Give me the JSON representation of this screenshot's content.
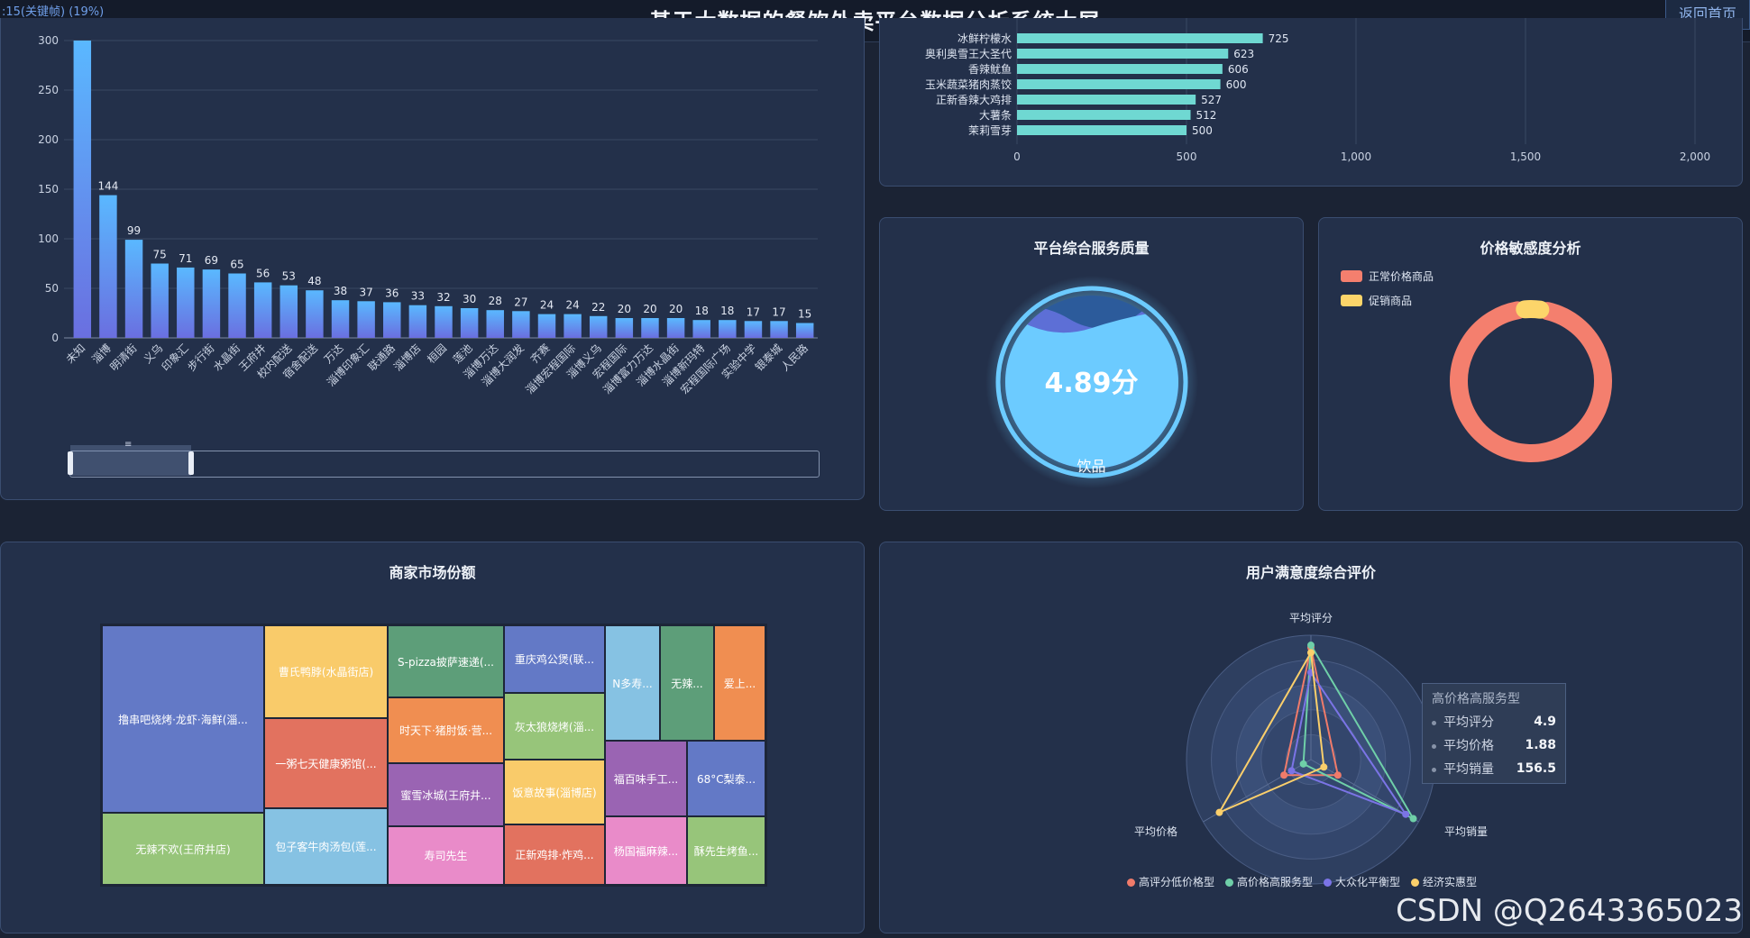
{
  "header": {
    "fps_text": ":15(关键帧) (19%)",
    "title": "基于大数据的餐饮外卖平台数据分析系统大屏",
    "home_button": "返回首页"
  },
  "colors": {
    "bar_top": "#5ab8ff",
    "bar_bottom": "#6a6fe0",
    "hbar": "#6fd8d2",
    "gauge": "#6ccbff",
    "normal_price": "#f47f6e",
    "promo_price": "#fcd56a"
  },
  "area_bar": {
    "chart_data": {
      "type": "bar",
      "categories": [
        "未知",
        "淄博",
        "明清街",
        "义乌",
        "印象汇",
        "步行街",
        "水晶街",
        "王府井",
        "校内配送",
        "宿舍配送",
        "万达",
        "淄博印象汇",
        "联通路",
        "淄博店",
        "桓园",
        "莲池",
        "淄博万达",
        "淄博大润发",
        "齐赛",
        "淄博宏程国际",
        "淄博义乌",
        "宏程国际",
        "淄博富力万达",
        "淄博水晶街",
        "淄博新玛特",
        "宏程国际广场",
        "实验中学",
        "银泰城",
        "人民路"
      ],
      "values": [
        300,
        144,
        99,
        75,
        71,
        69,
        65,
        56,
        53,
        48,
        38,
        37,
        36,
        33,
        32,
        30,
        28,
        27,
        24,
        24,
        22,
        20,
        20,
        20,
        18,
        18,
        17,
        17,
        15
      ],
      "value_labels": [
        "",
        "144",
        "99",
        "75",
        "71",
        "69",
        "65",
        "56",
        "53",
        "48",
        "38",
        "37",
        "36",
        "33",
        "32",
        "30",
        "28",
        "27",
        "24",
        "24",
        "22",
        "20",
        "20",
        "20",
        "18",
        "18",
        "17",
        "17",
        "15"
      ],
      "yticks": [
        "0",
        "50",
        "100",
        "150",
        "200",
        "250",
        "300"
      ],
      "ylim": [
        0,
        300
      ],
      "datazoom_handle": "≡"
    }
  },
  "top_dishes": {
    "chart_data": {
      "type": "bar",
      "orientation": "horizontal",
      "categories": [
        "冰鲜柠檬水",
        "奥利奥雪王大圣代",
        "香辣鱿鱼",
        "玉米蔬菜猪肉蒸饺",
        "正新香辣大鸡排",
        "大薯条",
        "茉莉雪芽"
      ],
      "values": [
        725,
        623,
        606,
        600,
        527,
        512,
        500
      ],
      "xticks": [
        "0",
        "500",
        "1,000",
        "1,500",
        "2,000"
      ],
      "xlim": [
        0,
        2000
      ]
    }
  },
  "service_quality": {
    "title": "平台综合服务质量",
    "value": "4.89分",
    "label": "饮品"
  },
  "price_sensitivity": {
    "title": "价格敏感度分析",
    "legend": [
      "正常价格商品",
      "促销商品"
    ],
    "chart_data": {
      "type": "pie",
      "labels": [
        "正常价格商品",
        "促销商品"
      ],
      "values": [
        95,
        5
      ]
    }
  },
  "market_share": {
    "title": "商家市场份额",
    "cells": [
      {
        "label": "撸串吧烧烤·龙虾·海鲜(淄...",
        "color": "#6379c6"
      },
      {
        "label": "无辣不欢(王府井店)",
        "color": "#97c57a"
      },
      {
        "label": "曹氏鸭脖(水晶街店)",
        "color": "#f9cb6a"
      },
      {
        "label": "一粥七天健康粥馆(...",
        "color": "#e2725f"
      },
      {
        "label": "包子客牛肉汤包(莲...",
        "color": "#86c2e3"
      },
      {
        "label": "S-pizza披萨速递(...",
        "color": "#5d9e79"
      },
      {
        "label": "时天下·猪肘饭·营...",
        "color": "#f08e51"
      },
      {
        "label": "蜜雪冰城(王府井...",
        "color": "#9a64b3"
      },
      {
        "label": "寿司先生",
        "color": "#e98bc9"
      },
      {
        "label": "重庆鸡公煲(联...",
        "color": "#6379c6"
      },
      {
        "label": "灰太狼烧烤(淄...",
        "color": "#97c57a"
      },
      {
        "label": "饭意故事(淄博店)",
        "color": "#f9cb6a"
      },
      {
        "label": "正新鸡排·炸鸡...",
        "color": "#e2725f"
      },
      {
        "label": "N多寿...",
        "color": "#86c2e3"
      },
      {
        "label": "无辣...",
        "color": "#5d9e79"
      },
      {
        "label": "爱上...",
        "color": "#f08e51"
      },
      {
        "label": "福百味手工...",
        "color": "#9a64b3"
      },
      {
        "label": "68°C梨泰...",
        "color": "#6379c6"
      },
      {
        "label": "杨国福麻辣...",
        "color": "#e98bc9"
      },
      {
        "label": "酥先生烤鱼...",
        "color": "#97c57a"
      }
    ]
  },
  "satisfaction": {
    "title": "用户满意度综合评价",
    "axes": [
      "平均评分",
      "平均价格",
      "平均销量"
    ],
    "legend": [
      {
        "name": "高评分低价格型",
        "color": "#f07b6a"
      },
      {
        "name": "高价格高服务型",
        "color": "#6fcfa8"
      },
      {
        "name": "大众化平衡型",
        "color": "#7b74e6"
      },
      {
        "name": "经济实惠型",
        "color": "#fbcf6b"
      }
    ],
    "tooltip": {
      "title": "高价格高服务型",
      "rows": [
        {
          "label": "平均评分",
          "value": "4.9"
        },
        {
          "label": "平均价格",
          "value": "1.88"
        },
        {
          "label": "平均销量",
          "value": "156.5"
        }
      ]
    },
    "series_fractions": [
      {
        "score": 0.9,
        "price": 0.25,
        "sales": 0.25
      },
      {
        "score": 0.92,
        "price": 0.07,
        "sales": 0.95
      },
      {
        "score": 0.7,
        "price": 0.18,
        "sales": 0.88
      },
      {
        "score": 0.86,
        "price": 0.85,
        "sales": 0.12
      }
    ]
  },
  "watermark": "CSDN @Q2643365023"
}
